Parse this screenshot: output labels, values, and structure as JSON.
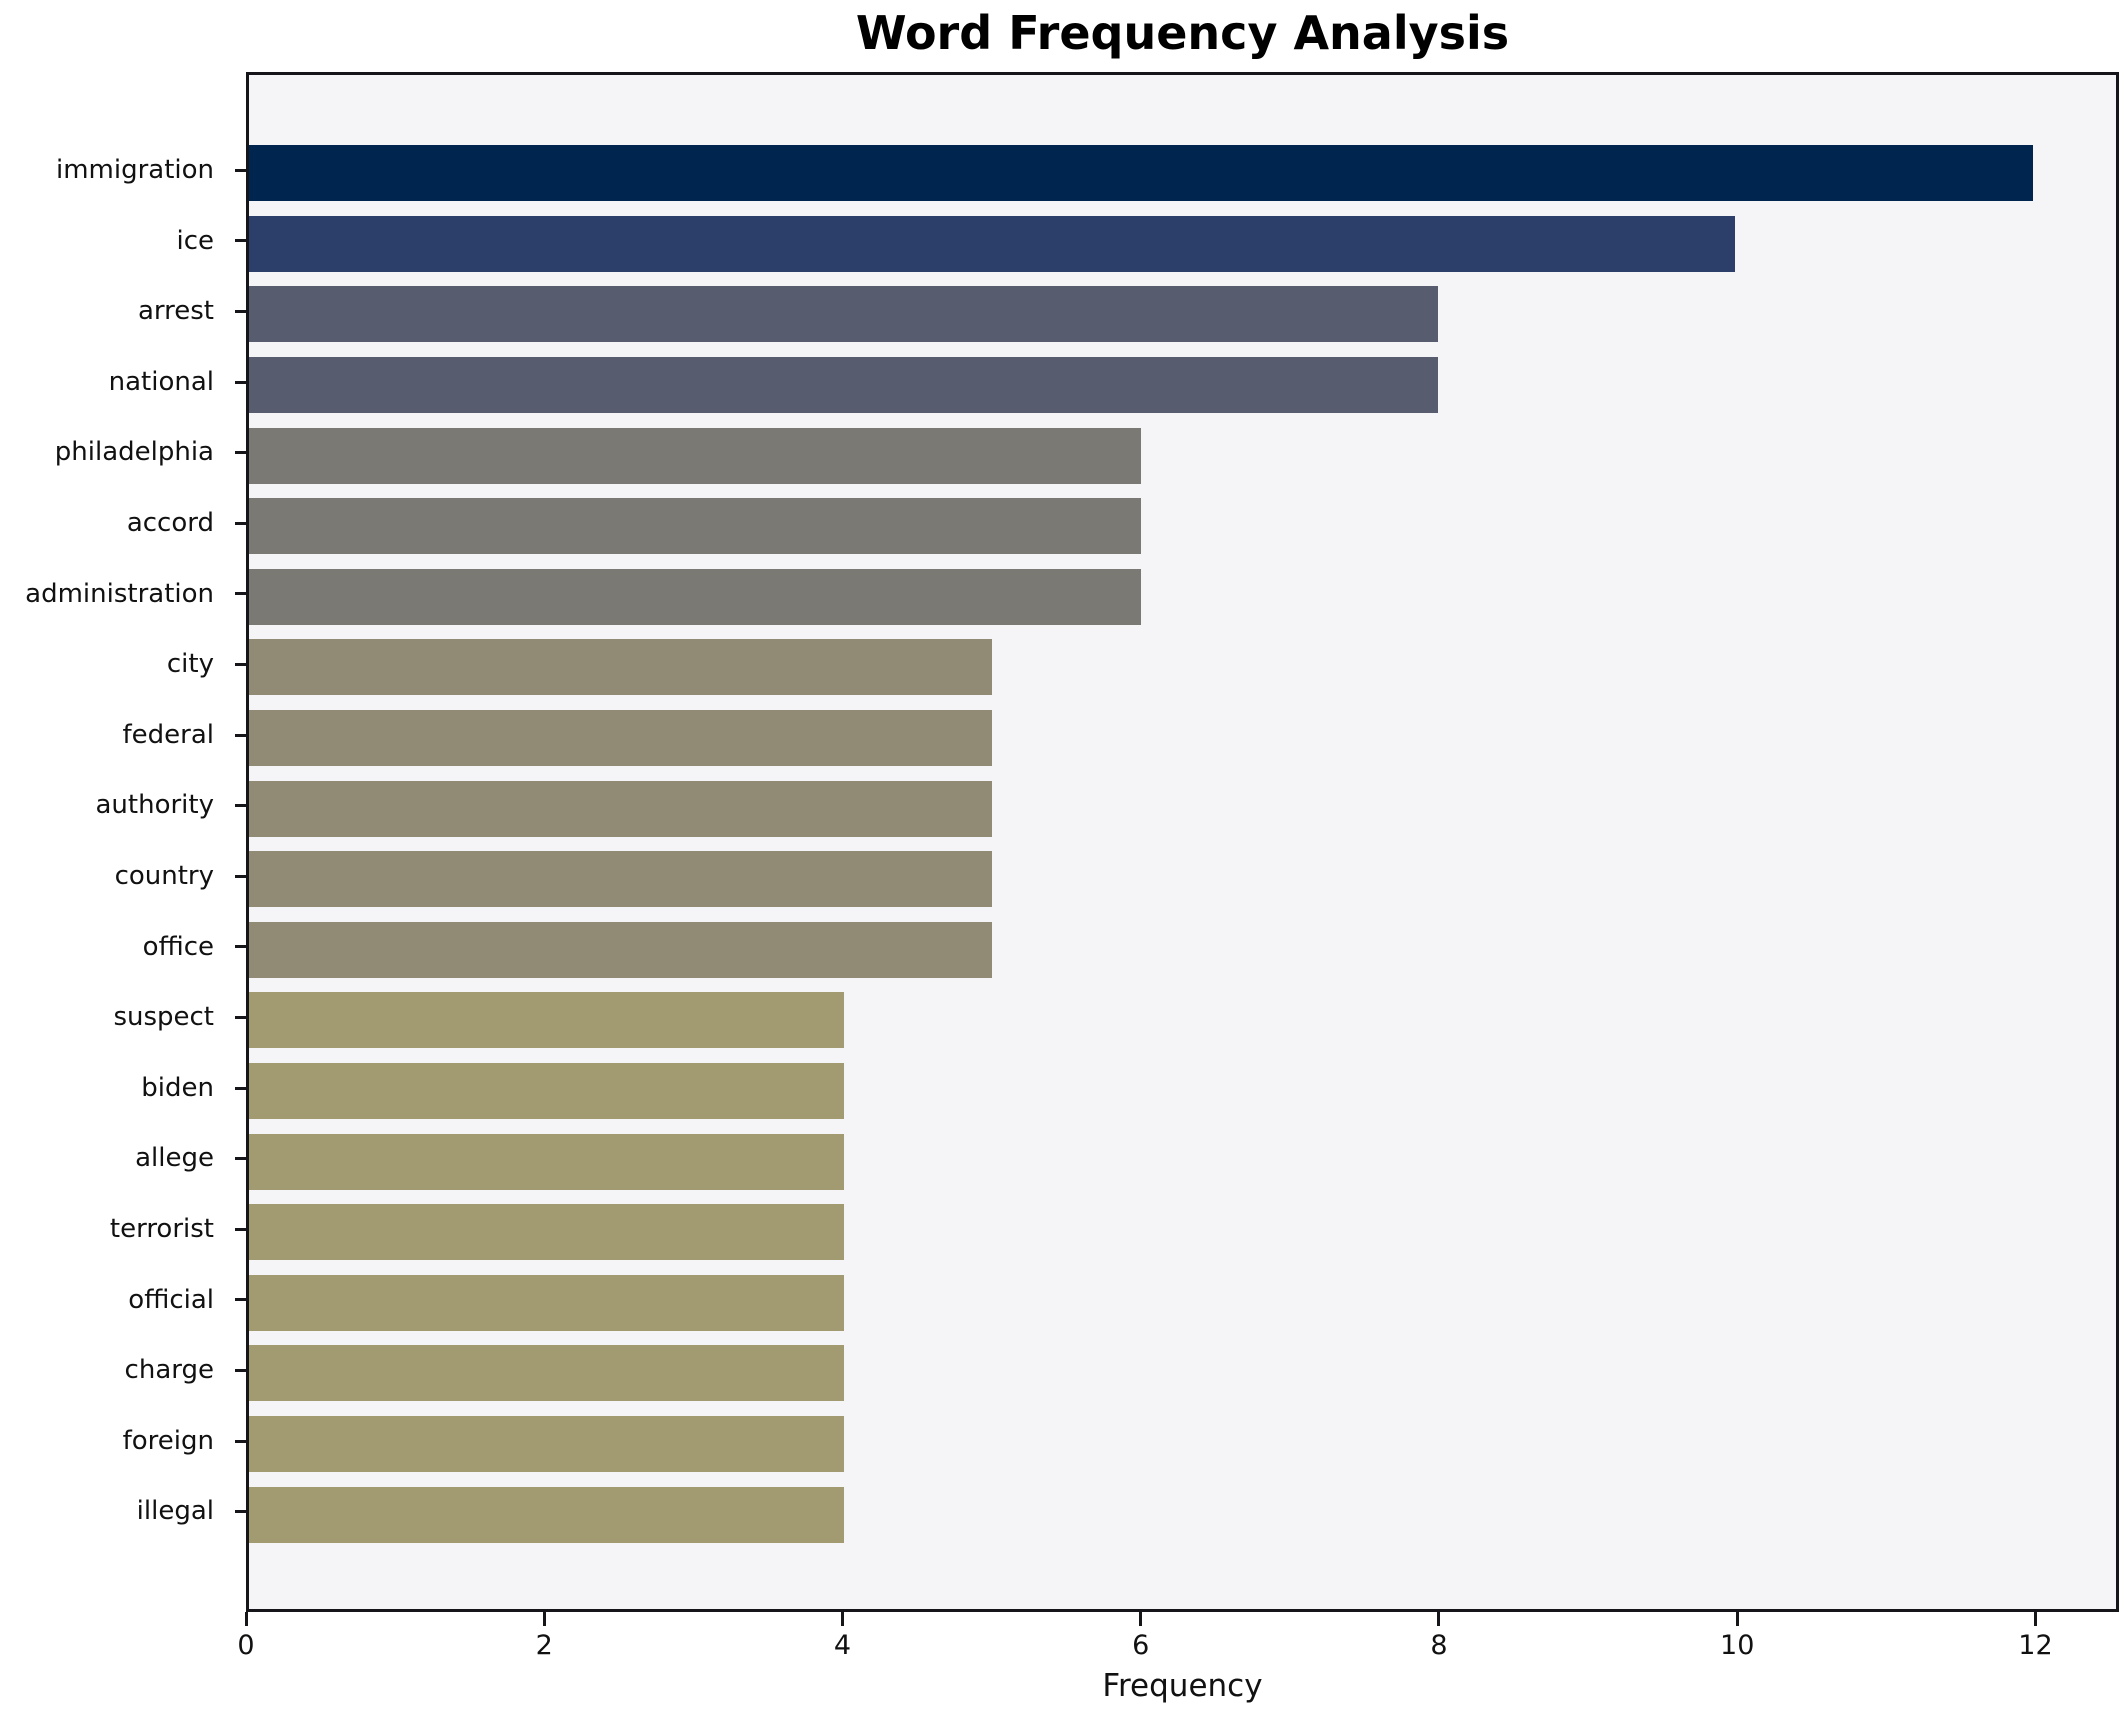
{
  "chart_data": {
    "type": "bar",
    "orientation": "horizontal",
    "title": "Word Frequency Analysis",
    "xlabel": "Frequency",
    "ylabel": "",
    "categories": [
      "immigration",
      "ice",
      "arrest",
      "national",
      "philadelphia",
      "accord",
      "administration",
      "city",
      "federal",
      "authority",
      "country",
      "office",
      "suspect",
      "biden",
      "allege",
      "terrorist",
      "official",
      "charge",
      "foreign",
      "illegal"
    ],
    "values": [
      12,
      10,
      8,
      8,
      6,
      6,
      6,
      5,
      5,
      5,
      5,
      5,
      4,
      4,
      4,
      4,
      4,
      4,
      4,
      4
    ],
    "bar_colors": [
      "#00254e",
      "#2c3e6a",
      "#575d6f",
      "#575d6f",
      "#7a7974",
      "#7a7974",
      "#7a7974",
      "#918a75",
      "#918a75",
      "#918a75",
      "#918a75",
      "#918a75",
      "#a29b72",
      "#a29b72",
      "#a29b72",
      "#a29b72",
      "#a29b72",
      "#a29b72",
      "#a29b72",
      "#a29b72"
    ],
    "x_ticks": [
      0,
      2,
      4,
      6,
      8,
      10,
      12
    ],
    "xlim": [
      0,
      12.56
    ],
    "grid": false,
    "legend": false,
    "plot_bg": "#f5f4f6",
    "figure_bg": "#ffffff",
    "spine_color": "#15151a",
    "text_color": "#111111"
  }
}
